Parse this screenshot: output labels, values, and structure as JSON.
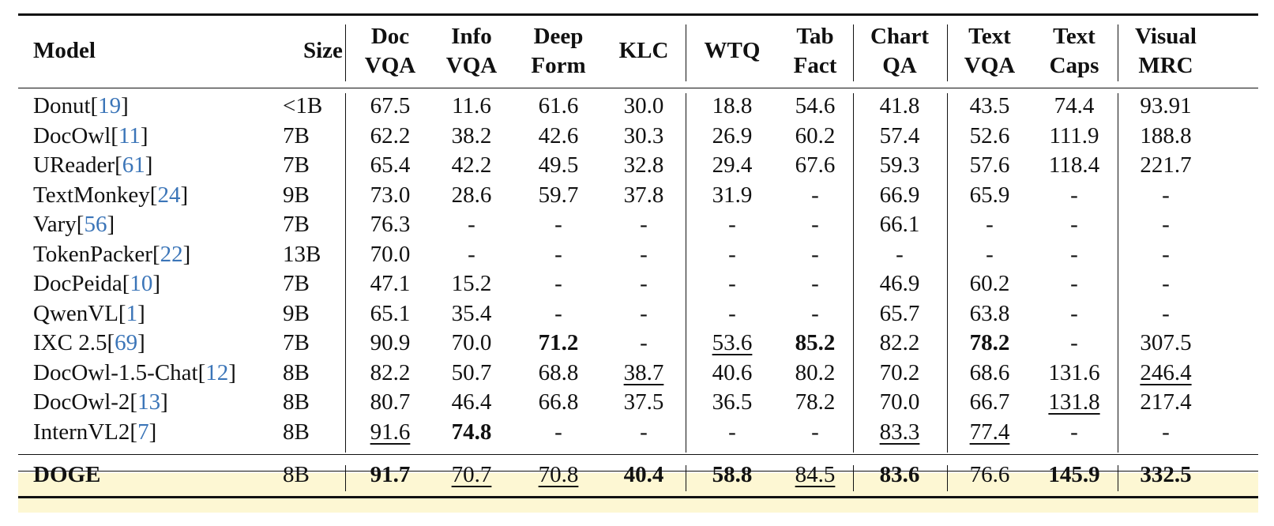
{
  "table": {
    "headers": [
      {
        "lines": [
          "Model"
        ]
      },
      {
        "lines": [
          "Size"
        ]
      },
      {
        "lines": [
          "Doc",
          "VQA"
        ]
      },
      {
        "lines": [
          "Info",
          "VQA"
        ]
      },
      {
        "lines": [
          "Deep",
          "Form"
        ]
      },
      {
        "lines": [
          "KLC"
        ]
      },
      {
        "lines": [
          "WTQ"
        ]
      },
      {
        "lines": [
          "Tab",
          "Fact"
        ]
      },
      {
        "lines": [
          "Chart",
          "QA"
        ]
      },
      {
        "lines": [
          "Text",
          "VQA"
        ]
      },
      {
        "lines": [
          "Text",
          "Caps"
        ]
      },
      {
        "lines": [
          "Visual",
          "MRC"
        ]
      }
    ],
    "rows": [
      {
        "model": "Donut",
        "cite": "19",
        "size": "<1B",
        "values": [
          "67.5",
          "11.6",
          "61.6",
          "30.0",
          "18.8",
          "54.6",
          "41.8",
          "43.5",
          "74.4",
          "93.91"
        ],
        "bold": [],
        "underline": []
      },
      {
        "model": "DocOwl",
        "cite": "11",
        "size": "7B",
        "values": [
          "62.2",
          "38.2",
          "42.6",
          "30.3",
          "26.9",
          "60.2",
          "57.4",
          "52.6",
          "111.9",
          "188.8"
        ],
        "bold": [],
        "underline": []
      },
      {
        "model": "UReader",
        "cite": "61",
        "size": "7B",
        "values": [
          "65.4",
          "42.2",
          "49.5",
          "32.8",
          "29.4",
          "67.6",
          "59.3",
          "57.6",
          "118.4",
          "221.7"
        ],
        "bold": [],
        "underline": []
      },
      {
        "model": "TextMonkey",
        "cite": "24",
        "size": "9B",
        "values": [
          "73.0",
          "28.6",
          "59.7",
          "37.8",
          "31.9",
          "-",
          "66.9",
          "65.9",
          "-",
          "-"
        ],
        "bold": [],
        "underline": []
      },
      {
        "model": "Vary",
        "cite": "56",
        "size": "7B",
        "values": [
          "76.3",
          "-",
          "-",
          "-",
          "-",
          "-",
          "66.1",
          "-",
          "-",
          "-"
        ],
        "bold": [],
        "underline": []
      },
      {
        "model": "TokenPacker",
        "cite": "22",
        "size": "13B",
        "values": [
          "70.0",
          "-",
          "-",
          "-",
          "-",
          "-",
          "-",
          "-",
          "-",
          "-"
        ],
        "bold": [],
        "underline": []
      },
      {
        "model": "DocPeida",
        "cite": "10",
        "size": "7B",
        "values": [
          "47.1",
          "15.2",
          "-",
          "-",
          "-",
          "-",
          "46.9",
          "60.2",
          "-",
          "-"
        ],
        "bold": [],
        "underline": []
      },
      {
        "model": "QwenVL",
        "cite": "1",
        "size": "9B",
        "values": [
          "65.1",
          "35.4",
          "-",
          "-",
          "-",
          "-",
          "65.7",
          "63.8",
          "-",
          "-"
        ],
        "bold": [],
        "underline": []
      },
      {
        "model": "IXC 2.5",
        "cite": "69",
        "size": "7B",
        "values": [
          "90.9",
          "70.0",
          "71.2",
          "-",
          "53.6",
          "85.2",
          "82.2",
          "78.2",
          "-",
          "307.5"
        ],
        "bold": [
          2,
          5,
          7
        ],
        "underline": [
          4
        ]
      },
      {
        "model": "DocOwl-1.5-Chat",
        "cite": "12",
        "size": "8B",
        "values": [
          "82.2",
          "50.7",
          "68.8",
          "38.7",
          "40.6",
          "80.2",
          "70.2",
          "68.6",
          "131.6",
          "246.4"
        ],
        "bold": [],
        "underline": [
          3,
          9
        ]
      },
      {
        "model": "DocOwl-2",
        "cite": "13",
        "size": "8B",
        "values": [
          "80.7",
          "46.4",
          "66.8",
          "37.5",
          "36.5",
          "78.2",
          "70.0",
          "66.7",
          "131.8",
          "217.4"
        ],
        "bold": [],
        "underline": [
          8
        ]
      },
      {
        "model": "InternVL2",
        "cite": "7",
        "size": "8B",
        "values": [
          "91.6",
          "74.8",
          "-",
          "-",
          "-",
          "-",
          "83.3",
          "77.4",
          "-",
          "-"
        ],
        "bold": [
          1
        ],
        "underline": [
          0,
          6,
          7
        ]
      }
    ],
    "final_row": {
      "model": "DOGE",
      "size": "8B",
      "values": [
        "91.7",
        "70.7",
        "70.8",
        "40.4",
        "58.8",
        "84.5",
        "83.6",
        "76.6",
        "145.9",
        "332.5"
      ],
      "bold": [
        0,
        3,
        4,
        6,
        8,
        9
      ],
      "underline": [
        1,
        2,
        5
      ]
    },
    "highlight_color": "#fdf7d3",
    "citation_color": "#3b75b8"
  }
}
